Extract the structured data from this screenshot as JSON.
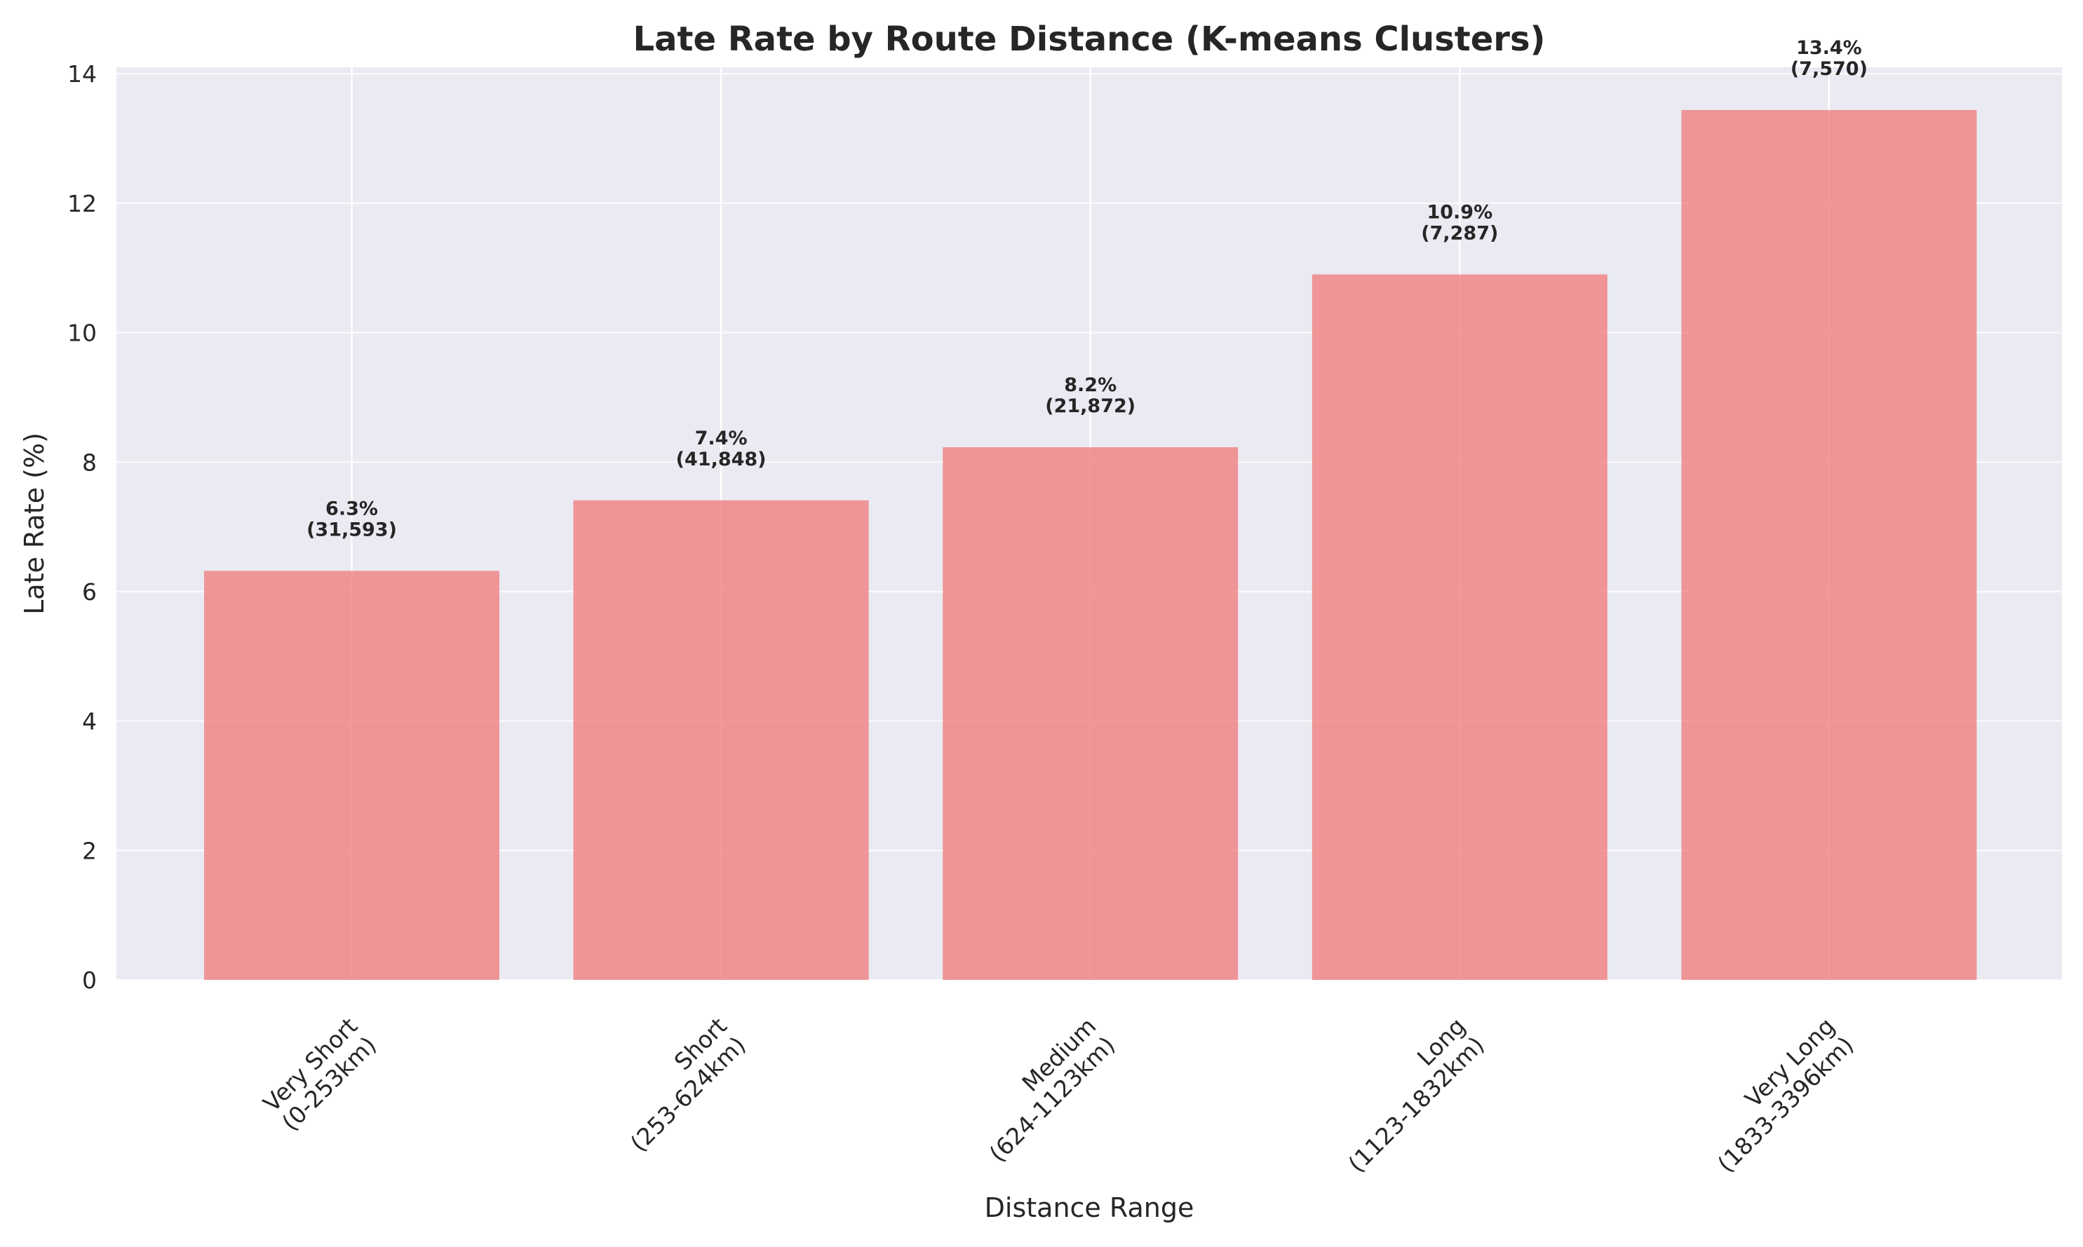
{
  "chart_data": {
    "type": "bar",
    "title": "Late Rate by Route Distance (K-means Clusters)",
    "xlabel": "Distance Range",
    "ylabel": "Late Rate (%)",
    "categories": [
      [
        "Very Short",
        "(0-253km)"
      ],
      [
        "Short",
        "(253-624km)"
      ],
      [
        "Medium",
        "(624-1123km)"
      ],
      [
        "Long",
        "(1123-1832km)"
      ],
      [
        "Very Long",
        "(1833-3396km)"
      ]
    ],
    "values": [
      6.32,
      7.41,
      8.23,
      10.9,
      13.44
    ],
    "value_labels": [
      "6.3%",
      "7.4%",
      "8.2%",
      "10.9%",
      "13.4%"
    ],
    "count_labels": [
      "(31,593)",
      "(41,848)",
      "(21,872)",
      "(7,287)",
      "(7,570)"
    ],
    "ylim": [
      0,
      14.1
    ],
    "yticks": [
      0,
      2,
      4,
      6,
      8,
      10,
      12,
      14
    ],
    "grid": true,
    "colors": {
      "bar": "#f08080",
      "plot_background": "#eaeaf2",
      "grid": "#ffffff",
      "text": "#262626"
    }
  }
}
